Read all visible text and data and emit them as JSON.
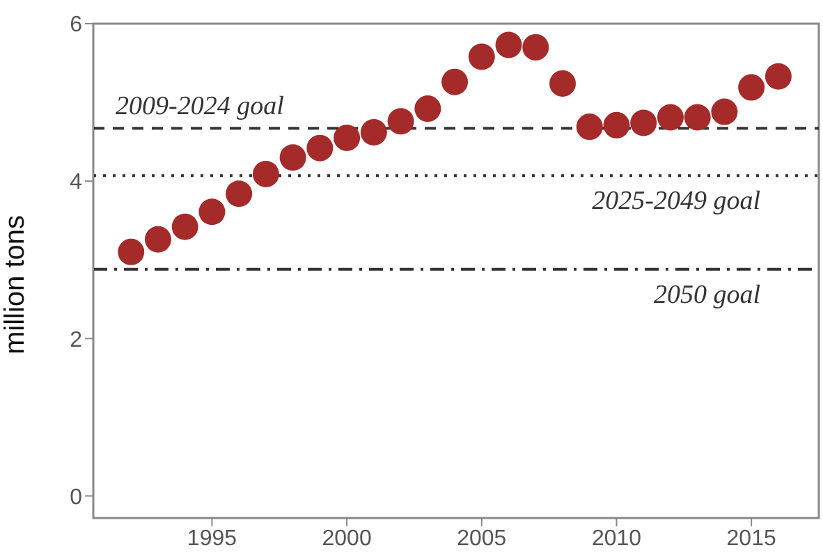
{
  "chart_data": {
    "type": "scatter",
    "ylabel": "million tons",
    "x": [
      1992,
      1993,
      1994,
      1995,
      1996,
      1997,
      1998,
      1999,
      2000,
      2001,
      2002,
      2003,
      2004,
      2005,
      2006,
      2007,
      2008,
      2009,
      2010,
      2011,
      2012,
      2013,
      2014,
      2015,
      2016
    ],
    "series": [
      {
        "color": "#a52a2a",
        "values": [
          3.1,
          3.26,
          3.42,
          3.61,
          3.84,
          4.09,
          4.3,
          4.42,
          4.55,
          4.62,
          4.76,
          4.92,
          5.26,
          5.58,
          5.73,
          5.7,
          5.24,
          4.69,
          4.71,
          4.74,
          4.81,
          4.81,
          4.88,
          5.19,
          5.33
        ]
      }
    ],
    "marker": "circle",
    "xlim": [
      1990.6,
      2017.5
    ],
    "xticks": [
      1995,
      2000,
      2005,
      2010,
      2015
    ],
    "ylim": [
      -0.28,
      6
    ],
    "yticks": [
      0,
      2,
      4,
      6
    ],
    "ref_lines": [
      {
        "axis": "y",
        "value": 4.67,
        "label": "2009-2024 goal",
        "line_style": "dashed",
        "color": "#333333"
      },
      {
        "axis": "y",
        "value": 4.07,
        "label": "2025-2049 goal",
        "line_style": "dotted",
        "color": "#333333"
      },
      {
        "axis": "y",
        "value": 2.88,
        "label": "2050 goal",
        "line_style": "dashdot",
        "color": "#333333"
      }
    ],
    "grid": false,
    "legend": false
  }
}
